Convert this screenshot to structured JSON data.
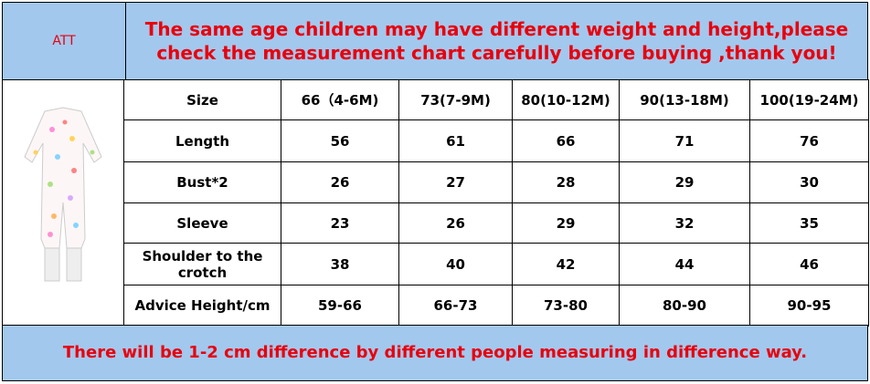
{
  "header": {
    "label": "ATT",
    "title": "The same age children may have different weight and height,please check the measurement chart carefully before buying ,thank you!"
  },
  "table": {
    "columns": [
      "Size",
      "66（4-6M)",
      "73(7-9M)",
      "80(10-12M)",
      "90(13-18M)",
      "100(19-24M)"
    ],
    "rows": [
      [
        "Length",
        56,
        61,
        66,
        71,
        76
      ],
      [
        "Bust*2",
        26,
        27,
        28,
        29,
        30
      ],
      [
        "Sleeve",
        23,
        26,
        29,
        32,
        35
      ],
      [
        "Shoulder to the crotch",
        38,
        40,
        42,
        44,
        46
      ],
      [
        "Advice Height/cm",
        "59-66",
        "66-73",
        "73-80",
        "80-90",
        "90-95"
      ]
    ]
  },
  "footer": {
    "note": "There will be 1-2 cm difference by different people measuring in difference way."
  }
}
